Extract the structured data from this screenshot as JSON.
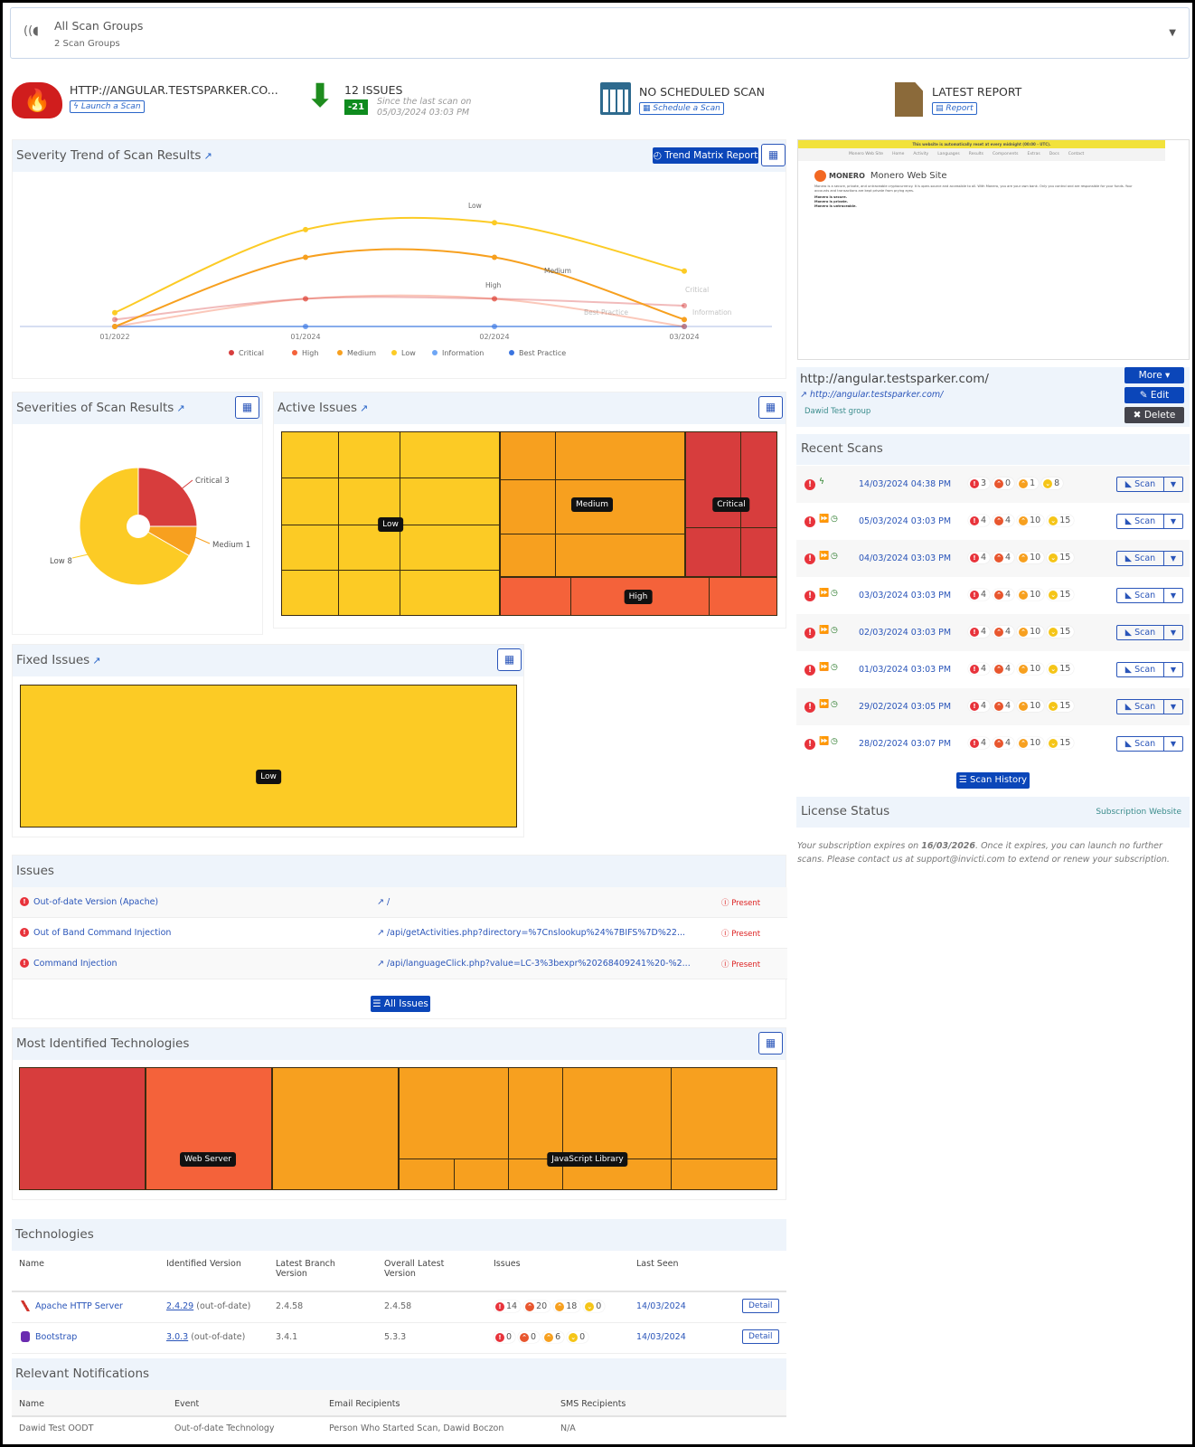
{
  "group_selector": {
    "title": "All Scan Groups",
    "subtitle": "2 Scan Groups",
    "icon": "scan-waves-icon"
  },
  "summary": {
    "target": {
      "title": "HTTP://ANGULAR.TESTSPARKER.CO...",
      "button": "Launch a Scan"
    },
    "issues": {
      "title": "12 ISSUES",
      "delta": "-21",
      "since1": "Since the last scan on",
      "since2": "05/03/2024 03:03 PM"
    },
    "schedule": {
      "title": "NO SCHEDULED SCAN",
      "button": "Schedule a Scan"
    },
    "report": {
      "title": "LATEST REPORT",
      "button": "Report"
    }
  },
  "trend": {
    "title": "Severity Trend of Scan Results",
    "button": "Trend Matrix Report"
  },
  "chart_data": [
    {
      "type": "line",
      "categories": [
        "01/2022",
        "01/2024",
        "02/2024",
        "03/2024"
      ],
      "series": [
        {
          "name": "Critical",
          "values": [
            1,
            4,
            4,
            3
          ],
          "color": "#d73d3d"
        },
        {
          "name": "High",
          "values": [
            0,
            4,
            4,
            0
          ],
          "color": "#f4623a"
        },
        {
          "name": "Medium",
          "values": [
            0,
            10,
            10,
            1
          ],
          "color": "#f7a01f"
        },
        {
          "name": "Low",
          "values": [
            2,
            14,
            15,
            8
          ],
          "color": "#fccb25"
        },
        {
          "name": "Information",
          "values": [
            0,
            0,
            0,
            0
          ],
          "color": "#6ea6f5"
        },
        {
          "name": "Best Practice",
          "values": [
            0,
            0,
            0,
            0
          ],
          "color": "#3a74e0"
        }
      ],
      "legend": "bottom",
      "grid": false
    },
    {
      "type": "pie",
      "title": "Severities of Scan Results",
      "slices": [
        {
          "label": "Critical",
          "value": 3,
          "color": "#d73d3d"
        },
        {
          "label": "Medium",
          "value": 1,
          "color": "#f7a01f"
        },
        {
          "label": "Low",
          "value": 8,
          "color": "#fccb25"
        }
      ]
    }
  ],
  "severities": {
    "title": "Severities of Scan Results",
    "labels": [
      "Critical 3",
      "Medium 1",
      "Low 8"
    ]
  },
  "active": {
    "title": "Active Issues",
    "labels": {
      "low": "Low",
      "medium": "Medium",
      "critical": "Critical",
      "high": "High"
    }
  },
  "fixed": {
    "title": "Fixed Issues",
    "label": "Low"
  },
  "issues": {
    "title": "Issues",
    "all_button": "All Issues",
    "rows": [
      {
        "name": "Out-of-date Version (Apache)",
        "url": "/",
        "status": "Present"
      },
      {
        "name": "Out of Band Command Injection",
        "url": "/api/getActivities.php?directory=%7Cnslookup%24%7BIFS%7D%22...",
        "status": "Present"
      },
      {
        "name": "Command Injection",
        "url": "/api/languageClick.php?value=LC-3%3bexpr%20268409241%20-%2...",
        "status": "Present"
      }
    ]
  },
  "most_tech": {
    "title": "Most Identified Technologies",
    "labels": [
      "Web Server",
      "JavaScript Library"
    ]
  },
  "technologies": {
    "title": "Technologies",
    "headers": [
      "Name",
      "Identified Version",
      "Latest Branch Version",
      "Overall Latest Version",
      "Issues",
      "Last Seen"
    ],
    "rows": [
      {
        "name": "Apache HTTP Server",
        "version": "2.4.29",
        "status": "(out-of-date)",
        "branch": "2.4.58",
        "latest": "2.4.58",
        "issues": [
          "14",
          "20",
          "18",
          "0"
        ],
        "seen": "14/03/2024",
        "detail": "Detail"
      },
      {
        "name": "Bootstrap",
        "version": "3.0.3",
        "status": "(out-of-date)",
        "branch": "3.4.1",
        "latest": "5.3.3",
        "issues": [
          "0",
          "0",
          "6",
          "0"
        ],
        "seen": "14/03/2024",
        "detail": "Detail"
      }
    ]
  },
  "notifications": {
    "title": "Relevant Notifications",
    "headers": [
      "Name",
      "Event",
      "Email Recipients",
      "SMS Recipients"
    ],
    "rows": [
      {
        "name": "Dawid Test OODT",
        "event": "Out-of-date Technology",
        "email": "Person Who Started Scan, Dawid Boczon",
        "sms": "N/A"
      }
    ]
  },
  "preview": {
    "banner": "This website is automatically reset at every midnight (00:00 - UTC).",
    "site": "Monero Web Site",
    "nav": [
      "Home",
      "Activity",
      "Languages",
      "Results",
      "Components",
      "Extras",
      "Docs",
      "Contact"
    ],
    "logo": "MONERO",
    "heading": "Monero Web Site",
    "body": "Monero is a secure, private, and untraceable cryptocurrency. It is open-source and accessible to all. With Monero, you are your own bank. Only you control and are responsible for your funds. Your accounts and transactions are kept private from prying eyes.",
    "lines": [
      "Monero is secure.",
      "Monero is private.",
      "Monero is untraceable."
    ]
  },
  "target": {
    "url": "http://angular.testsparker.com/",
    "link": "http://angular.testsparker.com/",
    "group": "Dawid Test group",
    "more": "More",
    "edit": "Edit",
    "delete": "Delete"
  },
  "recent": {
    "title": "Recent Scans",
    "scan_label": "Scan",
    "history": "Scan History",
    "rows": [
      {
        "date": "14/03/2024 04:38 PM",
        "type": "incremental",
        "counts": [
          "3",
          "0",
          "1",
          "8"
        ]
      },
      {
        "date": "05/03/2024 03:03 PM",
        "type": "scheduled",
        "counts": [
          "4",
          "4",
          "10",
          "15"
        ]
      },
      {
        "date": "04/03/2024 03:03 PM",
        "type": "scheduled",
        "counts": [
          "4",
          "4",
          "10",
          "15"
        ]
      },
      {
        "date": "03/03/2024 03:03 PM",
        "type": "scheduled",
        "counts": [
          "4",
          "4",
          "10",
          "15"
        ]
      },
      {
        "date": "02/03/2024 03:03 PM",
        "type": "scheduled",
        "counts": [
          "4",
          "4",
          "10",
          "15"
        ]
      },
      {
        "date": "01/03/2024 03:03 PM",
        "type": "scheduled",
        "counts": [
          "4",
          "4",
          "10",
          "15"
        ]
      },
      {
        "date": "29/02/2024 03:05 PM",
        "type": "scheduled",
        "counts": [
          "4",
          "4",
          "10",
          "15"
        ]
      },
      {
        "date": "28/02/2024 03:07 PM",
        "type": "scheduled",
        "counts": [
          "4",
          "4",
          "10",
          "15"
        ]
      }
    ]
  },
  "license": {
    "title": "License Status",
    "link": "Subscription Website",
    "text1": "Your subscription expires on ",
    "date": "16/03/2026",
    "text2": ". Once it expires, you can launch no further scans. Please contact us at support@invicti.com to extend or renew your subscription."
  }
}
